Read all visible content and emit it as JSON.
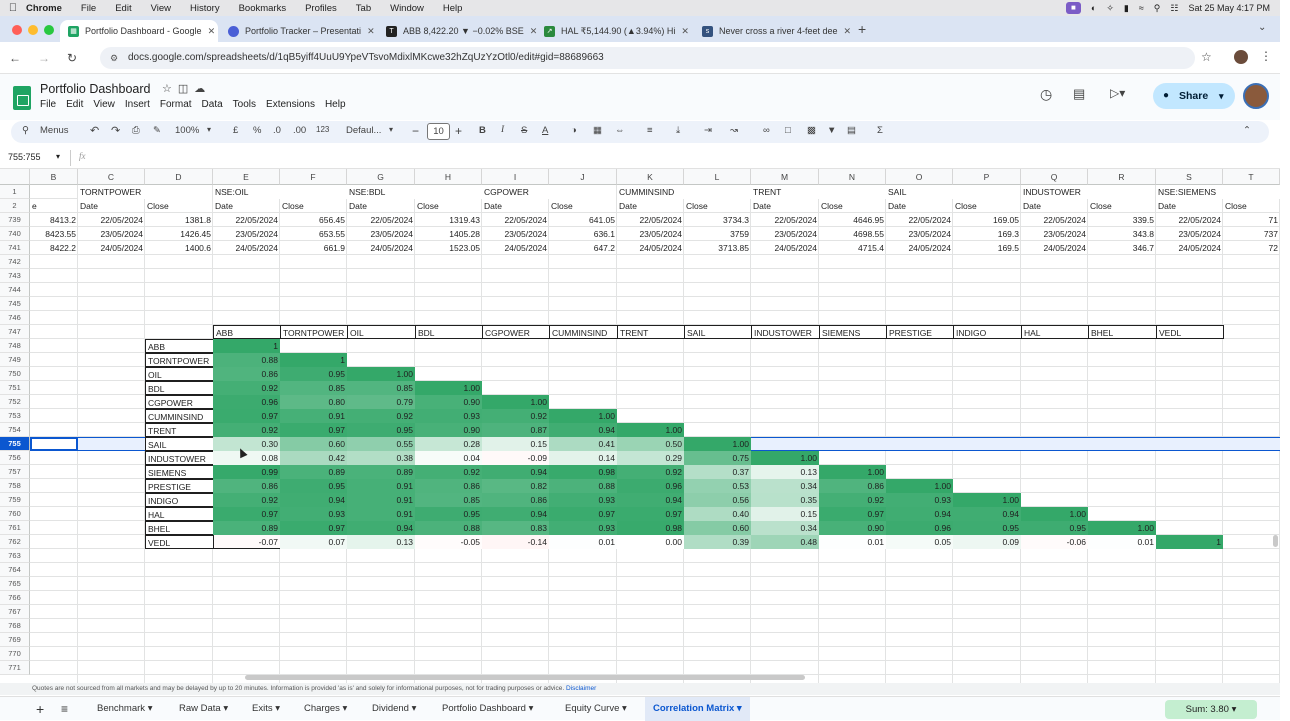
{
  "mac_menubar": {
    "app": "Chrome",
    "items": [
      "File",
      "Edit",
      "View",
      "History",
      "Bookmarks",
      "Profiles",
      "Tab",
      "Window",
      "Help"
    ],
    "clock": "Sat 25 May  4:17 PM"
  },
  "browser": {
    "tabs": [
      {
        "title": "Portfolio Dashboard - Google",
        "active": true
      },
      {
        "title": "Portfolio Tracker – Presentati"
      },
      {
        "title": "ABB 8,422.20 ▼ −0.02% BSE"
      },
      {
        "title": "HAL ₹5,144.90 (▲3.94%) Hi"
      },
      {
        "title": "Never cross a river 4-feet dee"
      }
    ],
    "url": "docs.google.com/spreadsheets/d/1qB5yiff4UuU9YpeVTsvoMdixlMKcwe32hZqUzYzOtl0/edit#gid=88689663"
  },
  "sheet": {
    "title": "Portfolio Dashboard",
    "menus": [
      "File",
      "Edit",
      "View",
      "Insert",
      "Format",
      "Data",
      "Tools",
      "Extensions",
      "Help"
    ],
    "share_label": "Share",
    "toolbar": {
      "search": "Menus",
      "zoom": "100%",
      "currency": "£",
      "percent": "%",
      "dec_less": ".0",
      "dec_more": ".00",
      "numfmt": "123",
      "font": "Defaul...",
      "font_size": "10"
    },
    "name_box": "755:755",
    "fx": "fx",
    "disclaimer": "Quotes are not sourced from all markets and may be delayed by up to 20 minutes. Information is provided 'as is' and solely for informational purposes, not for trading purposes or advice. ",
    "disclaimer_link": "Disclaimer",
    "sheet_tabs": [
      "Benchmark",
      "Raw Data",
      "Exits",
      "Charges",
      "Dividend",
      "Portfolio Dashboard",
      "Equity Curve",
      "Correlation Matrix"
    ],
    "active_sheet": "Correlation Matrix",
    "sum": "Sum: 3.80"
  },
  "grid": {
    "columns": [
      "B",
      "C",
      "D",
      "E",
      "F",
      "G",
      "H",
      "I",
      "J",
      "K",
      "L",
      "M",
      "N",
      "O",
      "P",
      "Q",
      "R",
      "S",
      "T"
    ],
    "row1": [
      "",
      "TORNTPOWER",
      "",
      "NSE:OIL",
      "",
      "NSE:BDL",
      "",
      "CGPOWER",
      "",
      "CUMMINSIND",
      "",
      "TRENT",
      "",
      "SAIL",
      "",
      "INDUSTOWER",
      "",
      "NSE:SIEMENS",
      ""
    ],
    "row2": [
      "e",
      "Date",
      "Close",
      "Date",
      "Close",
      "Date",
      "Close",
      "Date",
      "Close",
      "Date",
      "Close",
      "Date",
      "Close",
      "Date",
      "Close",
      "Date",
      "Close",
      "Date",
      "Close"
    ],
    "price_rows": [
      {
        "row": "739",
        "values": [
          "8413.2",
          "22/05/2024",
          "1381.8",
          "22/05/2024",
          "656.45",
          "22/05/2024",
          "1319.43",
          "22/05/2024",
          "641.05",
          "22/05/2024",
          "3734.3",
          "22/05/2024",
          "4646.95",
          "22/05/2024",
          "169.05",
          "22/05/2024",
          "339.5",
          "22/05/2024",
          "71"
        ]
      },
      {
        "row": "740",
        "values": [
          "8423.55",
          "23/05/2024",
          "1426.45",
          "23/05/2024",
          "653.55",
          "23/05/2024",
          "1405.28",
          "23/05/2024",
          "636.1",
          "23/05/2024",
          "3759",
          "23/05/2024",
          "4698.55",
          "23/05/2024",
          "169.3",
          "23/05/2024",
          "343.8",
          "23/05/2024",
          "737"
        ]
      },
      {
        "row": "741",
        "values": [
          "8422.2",
          "24/05/2024",
          "1400.6",
          "24/05/2024",
          "661.9",
          "24/05/2024",
          "1523.05",
          "24/05/2024",
          "647.2",
          "24/05/2024",
          "3713.85",
          "24/05/2024",
          "4715.4",
          "24/05/2024",
          "169.5",
          "24/05/2024",
          "346.7",
          "24/05/2024",
          "72"
        ]
      }
    ],
    "empty_rows_top": [
      "742",
      "743",
      "744",
      "745",
      "746"
    ],
    "matrix_header_row": "747",
    "matrix_headers": [
      "ABB",
      "TORNTPOWER",
      "OIL",
      "BDL",
      "CGPOWER",
      "CUMMINSIND",
      "TRENT",
      "SAIL",
      "INDUSTOWER",
      "SIEMENS",
      "PRESTIGE",
      "INDIGO",
      "HAL",
      "BHEL",
      "VEDL"
    ],
    "matrix_rows": [
      {
        "row": "748",
        "label": "ABB",
        "values": [
          "1"
        ]
      },
      {
        "row": "749",
        "label": "TORNTPOWER",
        "values": [
          "0.88",
          "1"
        ]
      },
      {
        "row": "750",
        "label": "OIL",
        "values": [
          "0.86",
          "0.95",
          "1.00"
        ]
      },
      {
        "row": "751",
        "label": "BDL",
        "values": [
          "0.92",
          "0.85",
          "0.85",
          "1.00"
        ]
      },
      {
        "row": "752",
        "label": "CGPOWER",
        "values": [
          "0.96",
          "0.80",
          "0.79",
          "0.90",
          "1.00"
        ]
      },
      {
        "row": "753",
        "label": "CUMMINSIND",
        "values": [
          "0.97",
          "0.91",
          "0.92",
          "0.93",
          "0.92",
          "1.00"
        ]
      },
      {
        "row": "754",
        "label": "TRENT",
        "values": [
          "0.92",
          "0.97",
          "0.95",
          "0.90",
          "0.87",
          "0.94",
          "1.00"
        ]
      },
      {
        "row": "755",
        "label": "SAIL",
        "values": [
          "0.30",
          "0.60",
          "0.55",
          "0.28",
          "0.15",
          "0.41",
          "0.50",
          "1.00"
        ]
      },
      {
        "row": "756",
        "label": "INDUSTOWER",
        "values": [
          "0.08",
          "0.42",
          "0.38",
          "0.04",
          "-0.09",
          "0.14",
          "0.29",
          "0.75",
          "1.00"
        ]
      },
      {
        "row": "757",
        "label": "SIEMENS",
        "values": [
          "0.99",
          "0.89",
          "0.89",
          "0.92",
          "0.94",
          "0.98",
          "0.92",
          "0.37",
          "0.13",
          "1.00"
        ]
      },
      {
        "row": "758",
        "label": "PRESTIGE",
        "values": [
          "0.86",
          "0.95",
          "0.91",
          "0.86",
          "0.82",
          "0.88",
          "0.96",
          "0.53",
          "0.34",
          "0.86",
          "1.00"
        ]
      },
      {
        "row": "759",
        "label": "INDIGO",
        "values": [
          "0.92",
          "0.94",
          "0.91",
          "0.85",
          "0.86",
          "0.93",
          "0.94",
          "0.56",
          "0.35",
          "0.92",
          "0.93",
          "1.00"
        ]
      },
      {
        "row": "760",
        "label": "HAL",
        "values": [
          "0.97",
          "0.93",
          "0.91",
          "0.95",
          "0.94",
          "0.97",
          "0.97",
          "0.40",
          "0.15",
          "0.97",
          "0.94",
          "0.94",
          "1.00"
        ]
      },
      {
        "row": "761",
        "label": "BHEL",
        "values": [
          "0.89",
          "0.97",
          "0.94",
          "0.88",
          "0.83",
          "0.93",
          "0.98",
          "0.60",
          "0.34",
          "0.90",
          "0.96",
          "0.95",
          "0.95",
          "1.00"
        ]
      },
      {
        "row": "762",
        "label": "VEDL",
        "values": [
          "-0.07",
          "0.07",
          "0.13",
          "-0.05",
          "-0.14",
          "0.01",
          "0.00",
          "0.39",
          "0.48",
          "0.01",
          "0.05",
          "0.09",
          "-0.06",
          "0.01",
          "1"
        ]
      }
    ],
    "empty_rows_bottom": [
      "763",
      "764",
      "765",
      "766",
      "767",
      "768",
      "769",
      "770",
      "771"
    ],
    "selected_row": "755"
  }
}
